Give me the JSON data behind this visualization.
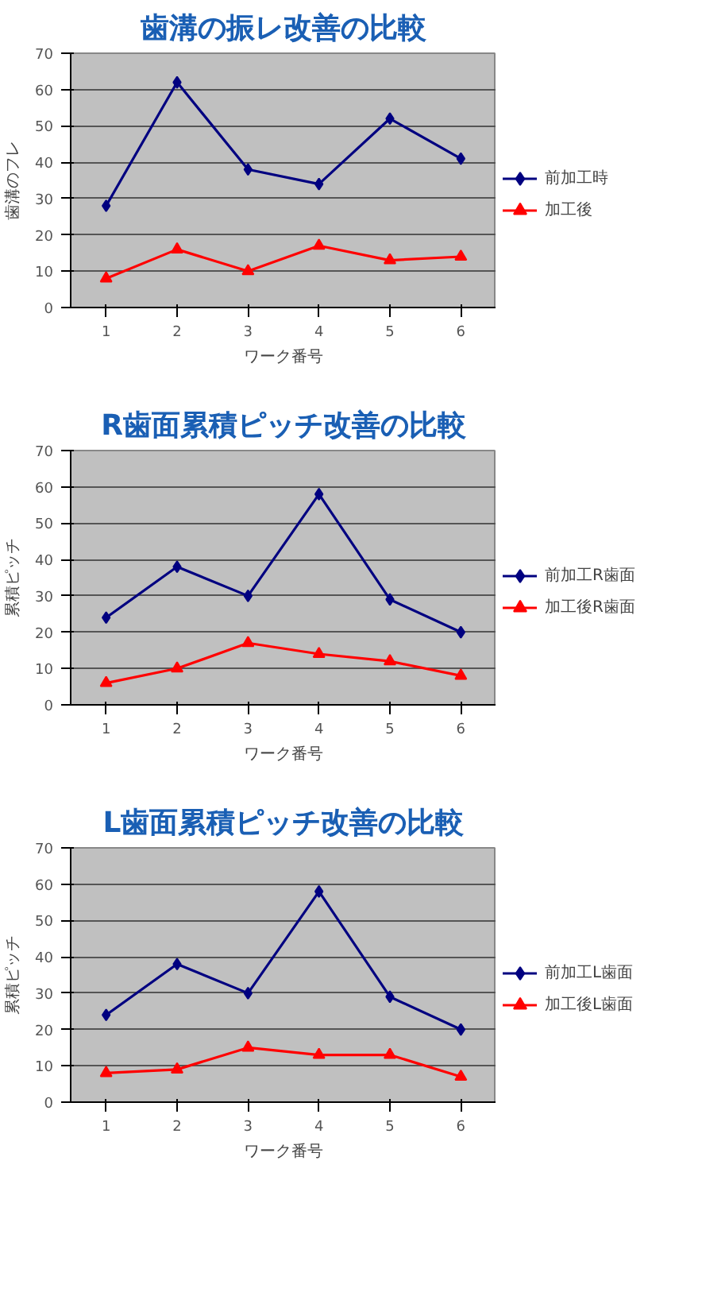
{
  "chart_data": [
    {
      "type": "line",
      "title": "歯溝の振レ改善の比較",
      "xlabel": "ワーク番号",
      "ylabel": "歯溝のフレ",
      "categories": [
        "1",
        "2",
        "3",
        "4",
        "5",
        "6"
      ],
      "ylim": [
        0,
        70
      ],
      "yticks": [
        0,
        10,
        20,
        30,
        40,
        50,
        60,
        70
      ],
      "grid": "y",
      "legend": "right",
      "series": [
        {
          "name": "前加工時",
          "color": "#000080",
          "marker": "diamond",
          "values": [
            28,
            62,
            38,
            34,
            52,
            41
          ]
        },
        {
          "name": "加工後",
          "color": "#ff0000",
          "marker": "triangle",
          "values": [
            8,
            16,
            10,
            17,
            13,
            14
          ]
        }
      ]
    },
    {
      "type": "line",
      "title": "R歯面累積ピッチ改善の比較",
      "xlabel": "ワーク番号",
      "ylabel": "累積ピッチ",
      "categories": [
        "1",
        "2",
        "3",
        "4",
        "5",
        "6"
      ],
      "ylim": [
        0,
        70
      ],
      "yticks": [
        0,
        10,
        20,
        30,
        40,
        50,
        60,
        70
      ],
      "grid": "y",
      "legend": "right",
      "series": [
        {
          "name": "前加工R歯面",
          "color": "#000080",
          "marker": "diamond",
          "values": [
            24,
            38,
            30,
            58,
            29,
            20
          ]
        },
        {
          "name": "加工後R歯面",
          "color": "#ff0000",
          "marker": "triangle",
          "values": [
            6,
            10,
            17,
            14,
            12,
            8
          ]
        }
      ]
    },
    {
      "type": "line",
      "title": "L歯面累積ピッチ改善の比較",
      "xlabel": "ワーク番号",
      "ylabel": "累積ピッチ",
      "categories": [
        "1",
        "2",
        "3",
        "4",
        "5",
        "6"
      ],
      "ylim": [
        0,
        70
      ],
      "yticks": [
        0,
        10,
        20,
        30,
        40,
        50,
        60,
        70
      ],
      "grid": "y",
      "legend": "right",
      "series": [
        {
          "name": "前加工L歯面",
          "color": "#000080",
          "marker": "diamond",
          "values": [
            24,
            38,
            30,
            58,
            29,
            20
          ]
        },
        {
          "name": "加工後L歯面",
          "color": "#ff0000",
          "marker": "triangle",
          "values": [
            8,
            9,
            15,
            13,
            13,
            7
          ]
        }
      ]
    }
  ]
}
